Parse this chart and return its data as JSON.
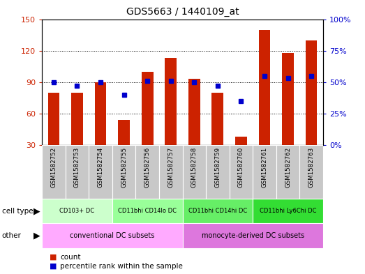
{
  "title": "GDS5663 / 1440109_at",
  "samples": [
    "GSM1582752",
    "GSM1582753",
    "GSM1582754",
    "GSM1582755",
    "GSM1582756",
    "GSM1582757",
    "GSM1582758",
    "GSM1582759",
    "GSM1582760",
    "GSM1582761",
    "GSM1582762",
    "GSM1582763"
  ],
  "counts": [
    80,
    80,
    90,
    54,
    100,
    113,
    93,
    80,
    38,
    140,
    118,
    130
  ],
  "percentiles": [
    50,
    47,
    50,
    40,
    51,
    51,
    50,
    47,
    35,
    55,
    53,
    55
  ],
  "ylim_left": [
    30,
    150
  ],
  "ylim_right": [
    0,
    100
  ],
  "yticks_left": [
    30,
    60,
    90,
    120,
    150
  ],
  "yticks_right": [
    0,
    25,
    50,
    75,
    100
  ],
  "ytick_labels_right": [
    "0%",
    "25%",
    "50%",
    "75%",
    "100%"
  ],
  "bar_color": "#cc2200",
  "dot_color": "#0000cc",
  "bar_width": 0.5,
  "cell_type_groups": [
    {
      "label": "CD103+ DC",
      "start": 0,
      "end": 2
    },
    {
      "label": "CD11bhi CD14lo DC",
      "start": 3,
      "end": 5
    },
    {
      "label": "CD11bhi CD14hi DC",
      "start": 6,
      "end": 8
    },
    {
      "label": "CD11bhi Ly6Chi DC",
      "start": 9,
      "end": 11
    }
  ],
  "cell_type_colors": [
    "#ccffcc",
    "#99ff99",
    "#66ee66",
    "#33dd33"
  ],
  "other_groups": [
    {
      "label": "conventional DC subsets",
      "start": 0,
      "end": 5
    },
    {
      "label": "monocyte-derived DC subsets",
      "start": 6,
      "end": 11
    }
  ],
  "other_colors": [
    "#ffaaff",
    "#dd77dd"
  ],
  "left_tick_color": "#cc2200",
  "right_tick_color": "#0000cc",
  "xlabel_bg": "#c8c8c8"
}
